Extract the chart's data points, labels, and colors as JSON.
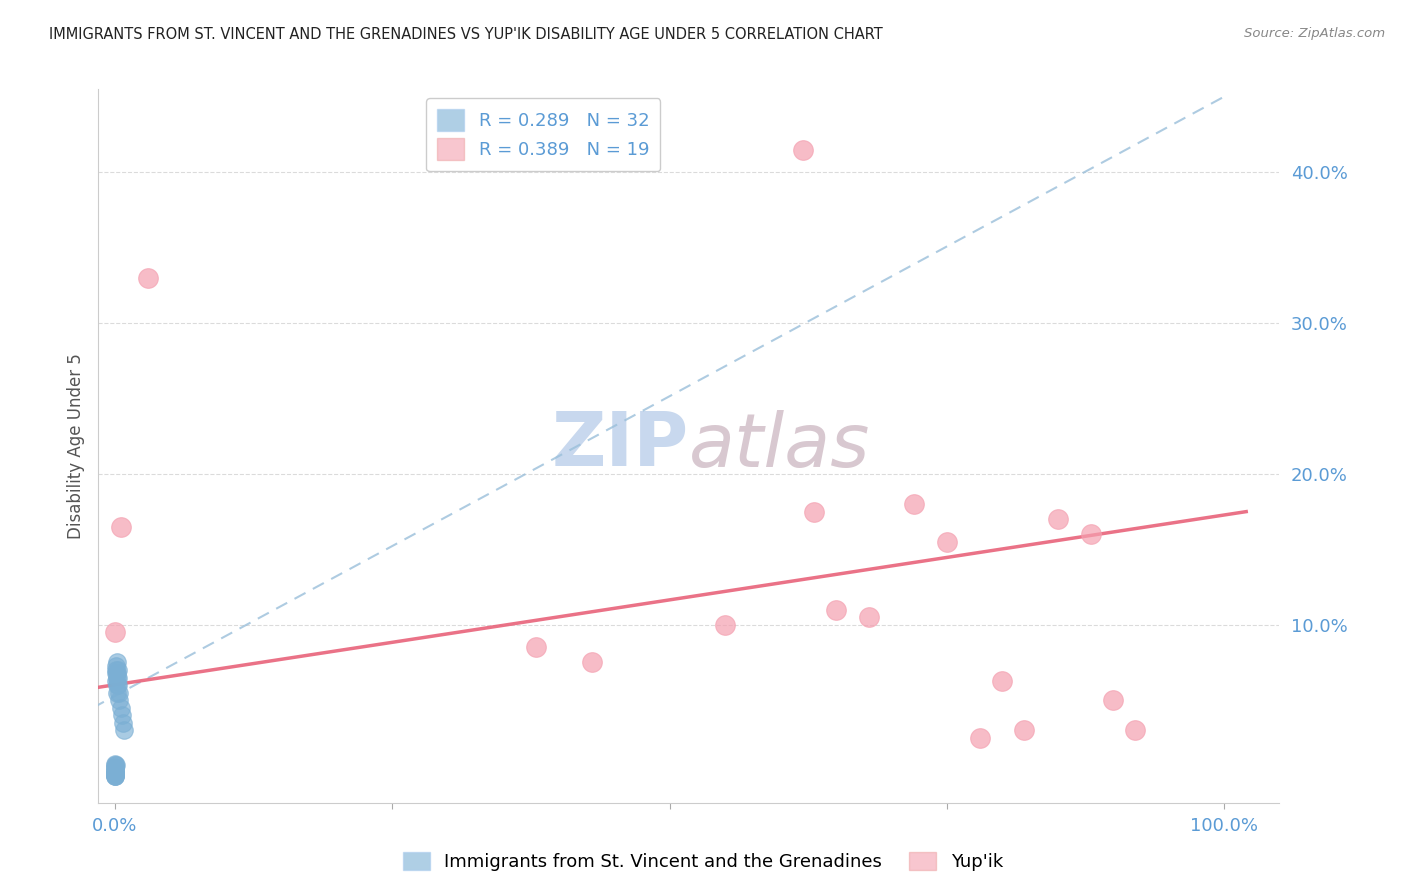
{
  "title": "IMMIGRANTS FROM ST. VINCENT AND THE GRENADINES VS YUP'IK DISABILITY AGE UNDER 5 CORRELATION CHART",
  "source": "Source: ZipAtlas.com",
  "ylabel": "Disability Age Under 5",
  "blue_R": 0.289,
  "blue_N": 32,
  "pink_R": 0.389,
  "pink_N": 19,
  "blue_label": "Immigrants from St. Vincent and the Grenadines",
  "pink_label": "Yup'ik",
  "background_color": "#ffffff",
  "blue_color": "#7bafd4",
  "pink_color": "#f4a0b0",
  "blue_line_color": "#9abfda",
  "pink_line_color": "#e8637a",
  "axis_label_color": "#5b9bd5",
  "grid_color": "#cccccc",
  "watermark_zip_color": "#c8d8ee",
  "watermark_atlas_color": "#d8c8d0",
  "blue_x": [
    0.0,
    0.0,
    0.0,
    0.0,
    0.0,
    0.0,
    0.0,
    0.0,
    0.0,
    0.0,
    0.0,
    0.0,
    0.0,
    0.001,
    0.001,
    0.001,
    0.001,
    0.001,
    0.002,
    0.002,
    0.002,
    0.002,
    0.002,
    0.003,
    0.003,
    0.003,
    0.004,
    0.004,
    0.005,
    0.006,
    0.007,
    0.008
  ],
  "blue_y": [
    0.0,
    0.0,
    0.0,
    0.001,
    0.001,
    0.002,
    0.002,
    0.003,
    0.004,
    0.005,
    0.006,
    0.007,
    0.008,
    0.007,
    0.063,
    0.068,
    0.07,
    0.073,
    0.055,
    0.06,
    0.065,
    0.068,
    0.075,
    0.06,
    0.065,
    0.07,
    0.05,
    0.055,
    0.045,
    0.04,
    0.035,
    0.03
  ],
  "pink_x": [
    0.0,
    0.005,
    0.03,
    0.38,
    0.43,
    0.55,
    0.62,
    0.63,
    0.65,
    0.68,
    0.72,
    0.75,
    0.78,
    0.8,
    0.82,
    0.85,
    0.88,
    0.9,
    0.92
  ],
  "pink_y": [
    0.095,
    0.165,
    0.33,
    0.085,
    0.075,
    0.1,
    0.415,
    0.175,
    0.11,
    0.105,
    0.18,
    0.155,
    0.025,
    0.063,
    0.03,
    0.17,
    0.16,
    0.05,
    0.03
  ],
  "blue_trend_x": [
    -0.02,
    1.0
  ],
  "blue_trend_y": [
    0.045,
    0.45
  ],
  "pink_trend_x": [
    -0.02,
    1.02
  ],
  "pink_trend_y": [
    0.058,
    0.175
  ],
  "xlim": [
    -0.015,
    1.05
  ],
  "ylim": [
    -0.018,
    0.455
  ]
}
